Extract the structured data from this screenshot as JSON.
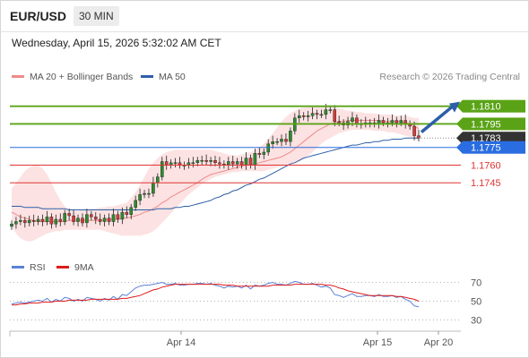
{
  "header": {
    "pair": "EUR/USD",
    "timeframe": "30 MIN",
    "datetime": "Wednesday, April 15, 2026 5:32:02 AM CET"
  },
  "legend": {
    "ma20": "MA 20 + Bollinger Bands",
    "ma50": "MA 50",
    "credit": "Research © 2026 Trading Central",
    "ma20_color": "#ef8a8a",
    "ma50_color": "#2d5fa8"
  },
  "rsi_legend": {
    "rsi": "RSI",
    "ma9": "9MA",
    "rsi_color": "#5a82d6",
    "ma9_color": "#e01b1b"
  },
  "chart_data": [
    {
      "type": "candlestick",
      "ylim": [
        1.1695,
        1.1828
      ],
      "x_ticks": [
        "Apr 14",
        "Apr 15",
        "Apr 20"
      ],
      "levels": [
        {
          "value": 1.181,
          "label": "1.1810",
          "kind": "resistance",
          "color": "#5aa317"
        },
        {
          "value": 1.1795,
          "label": "1.1795",
          "kind": "resistance",
          "color": "#5aa317"
        },
        {
          "value": 1.1783,
          "label": "1.1783",
          "kind": "current",
          "color": "#333333"
        },
        {
          "value": 1.1775,
          "label": "1.1775",
          "kind": "pivot",
          "color": "#2a6de0"
        },
        {
          "value": 1.176,
          "label": "1.1760",
          "kind": "support",
          "color": "#e03434"
        },
        {
          "value": 1.1745,
          "label": "1.1745",
          "kind": "support",
          "color": "#e03434"
        }
      ],
      "close": [
        1.171,
        1.1712,
        1.1713,
        1.1711,
        1.1713,
        1.1712,
        1.1714,
        1.1712,
        1.1716,
        1.171,
        1.1714,
        1.1712,
        1.1719,
        1.1717,
        1.1712,
        1.1715,
        1.1711,
        1.1718,
        1.1716,
        1.1714,
        1.1712,
        1.1715,
        1.1712,
        1.1718,
        1.1714,
        1.172,
        1.1718,
        1.1724,
        1.173,
        1.1735,
        1.1736,
        1.1736,
        1.1745,
        1.175,
        1.1763,
        1.176,
        1.1762,
        1.1762,
        1.176,
        1.176,
        1.1762,
        1.1762,
        1.1764,
        1.1764,
        1.1763,
        1.1764,
        1.1762,
        1.1761,
        1.176,
        1.1763,
        1.1761,
        1.1763,
        1.176,
        1.1766,
        1.176,
        1.177,
        1.1769,
        1.1771,
        1.1778,
        1.178,
        1.178,
        1.1782,
        1.178,
        1.1789,
        1.18,
        1.1802,
        1.1801,
        1.1802,
        1.1804,
        1.1803,
        1.1803,
        1.1807,
        1.1807,
        1.1797,
        1.1796,
        1.1794,
        1.1797,
        1.18,
        1.1795,
        1.1795,
        1.1796,
        1.1796,
        1.1795,
        1.1798,
        1.1796,
        1.1796,
        1.1798,
        1.1796,
        1.1798,
        1.1795,
        1.1793,
        1.1785,
        1.1783
      ],
      "ma20": [
        1.172,
        1.1718,
        1.1716,
        1.1715,
        1.1714,
        1.1713,
        1.1712,
        1.1712,
        1.1712,
        1.1712,
        1.1712,
        1.1712,
        1.1712,
        1.1713,
        1.1713,
        1.1713,
        1.1713,
        1.1713,
        1.1713,
        1.1713,
        1.1713,
        1.1713,
        1.1714,
        1.1714,
        1.1714,
        1.1715,
        1.1715,
        1.1716,
        1.1717,
        1.1718,
        1.172,
        1.1721,
        1.1723,
        1.1725,
        1.1728,
        1.173,
        1.1733,
        1.1735,
        1.1737,
        1.1739,
        1.1741,
        1.1743,
        1.1745,
        1.1748,
        1.175,
        1.1752,
        1.1753,
        1.1754,
        1.1755,
        1.1756,
        1.1757,
        1.1758,
        1.1759,
        1.176,
        1.176,
        1.1761,
        1.1762,
        1.1763,
        1.1764,
        1.1765,
        1.1766,
        1.1767,
        1.1769,
        1.1771,
        1.1774,
        1.1777,
        1.178,
        1.1783,
        1.1786,
        1.1789,
        1.1791,
        1.1793,
        1.1795,
        1.1796,
        1.1797,
        1.1797,
        1.1798,
        1.1798,
        1.1798,
        1.1798,
        1.1798,
        1.1798,
        1.1798,
        1.1798,
        1.1797,
        1.1797,
        1.1797,
        1.1797,
        1.1797,
        1.1796,
        1.1795,
        1.1793,
        1.1791
      ],
      "ma50": [
        1.1725,
        1.1725,
        1.1725,
        1.1724,
        1.1724,
        1.1724,
        1.1724,
        1.1723,
        1.1723,
        1.1723,
        1.1723,
        1.1723,
        1.1723,
        1.1722,
        1.1722,
        1.1722,
        1.1722,
        1.1722,
        1.1722,
        1.1722,
        1.1722,
        1.1722,
        1.1722,
        1.1722,
        1.1722,
        1.1722,
        1.1722,
        1.1722,
        1.1722,
        1.1722,
        1.1722,
        1.1722,
        1.1722,
        1.1723,
        1.1723,
        1.1723,
        1.1723,
        1.1724,
        1.1724,
        1.1725,
        1.1725,
        1.1726,
        1.1727,
        1.1728,
        1.1729,
        1.173,
        1.1732,
        1.1733,
        1.1735,
        1.1736,
        1.1738,
        1.1739,
        1.1741,
        1.1743,
        1.1744,
        1.1746,
        1.1748,
        1.1749,
        1.1751,
        1.1753,
        1.1755,
        1.1757,
        1.1759,
        1.1761,
        1.1762,
        1.1764,
        1.1766,
        1.1767,
        1.1768,
        1.1769,
        1.177,
        1.1771,
        1.1772,
        1.1773,
        1.1774,
        1.1775,
        1.1776,
        1.1777,
        1.1777,
        1.1778,
        1.1779,
        1.1779,
        1.178,
        1.178,
        1.1781,
        1.1781,
        1.1782,
        1.1782,
        1.1782,
        1.1783,
        1.1783,
        1.1783,
        1.1783
      ],
      "bb_upper": [
        1.174,
        1.1745,
        1.175,
        1.1755,
        1.1758,
        1.176,
        1.176,
        1.1757,
        1.1752,
        1.1745,
        1.1737,
        1.173,
        1.1725,
        1.1722,
        1.1721,
        1.1721,
        1.1722,
        1.1722,
        1.1723,
        1.1723,
        1.1724,
        1.1724,
        1.1725,
        1.1725,
        1.1726,
        1.1727,
        1.1728,
        1.1732,
        1.1737,
        1.1743,
        1.175,
        1.1757,
        1.1762,
        1.1766,
        1.1769,
        1.1771,
        1.1772,
        1.1773,
        1.1773,
        1.1773,
        1.1773,
        1.1773,
        1.1773,
        1.1773,
        1.1773,
        1.1773,
        1.1772,
        1.1771,
        1.177,
        1.1769,
        1.1768,
        1.1768,
        1.1769,
        1.177,
        1.1771,
        1.1773,
        1.1775,
        1.1778,
        1.1782,
        1.1787,
        1.1792,
        1.1797,
        1.1801,
        1.1804,
        1.1806,
        1.1808,
        1.1809,
        1.1809,
        1.181,
        1.181,
        1.181,
        1.181,
        1.1809,
        1.1809,
        1.1808,
        1.1807,
        1.1806,
        1.1806,
        1.1805,
        1.1805,
        1.1804,
        1.1804,
        1.1804,
        1.1803,
        1.1803,
        1.1803,
        1.1803,
        1.1802,
        1.1802,
        1.1802,
        1.1801,
        1.18,
        1.18
      ],
      "bb_lower": [
        1.1708,
        1.1702,
        1.1698,
        1.1696,
        1.1695,
        1.1696,
        1.1698,
        1.17,
        1.1702,
        1.1703,
        1.1704,
        1.1704,
        1.1705,
        1.1705,
        1.1705,
        1.1705,
        1.1705,
        1.1705,
        1.1705,
        1.1705,
        1.1705,
        1.1704,
        1.1703,
        1.1702,
        1.1701,
        1.17,
        1.17,
        1.17,
        1.17,
        1.17,
        1.1701,
        1.1702,
        1.1704,
        1.1707,
        1.1711,
        1.1715,
        1.1719,
        1.1723,
        1.1727,
        1.1731,
        1.1735,
        1.1738,
        1.1741,
        1.1744,
        1.1746,
        1.1748,
        1.175,
        1.1751,
        1.1752,
        1.1753,
        1.1754,
        1.1754,
        1.1755,
        1.1755,
        1.1755,
        1.1755,
        1.1755,
        1.1755,
        1.1756,
        1.1757,
        1.1758,
        1.1759,
        1.176,
        1.1761,
        1.1762,
        1.1763,
        1.1765,
        1.1768,
        1.1771,
        1.1775,
        1.1778,
        1.1781,
        1.1783,
        1.1785,
        1.1787,
        1.1788,
        1.1789,
        1.179,
        1.179,
        1.179,
        1.179,
        1.179,
        1.1789,
        1.1789,
        1.1789,
        1.1788,
        1.1788,
        1.1787,
        1.1786,
        1.1785,
        1.1784,
        1.1782,
        1.1781
      ],
      "projection": {
        "from": 1.1788,
        "to": 1.181
      }
    },
    {
      "type": "line",
      "title": "RSI",
      "ylim": [
        20,
        80
      ],
      "y_ticks": [
        70,
        50,
        30
      ],
      "series": [
        {
          "name": "RSI",
          "values": [
            47,
            48,
            49,
            48,
            49,
            50,
            51,
            50,
            53,
            49,
            52,
            50,
            54,
            53,
            50,
            52,
            50,
            54,
            53,
            52,
            50,
            53,
            51,
            55,
            52,
            57,
            56,
            60,
            64,
            66,
            67,
            67,
            68,
            69,
            70,
            68,
            68,
            69,
            67,
            67,
            68,
            68,
            69,
            69,
            68,
            69,
            67,
            66,
            64,
            66,
            65,
            66,
            64,
            67,
            63,
            67,
            66,
            67,
            69,
            70,
            68,
            68,
            67,
            69,
            71,
            70,
            68,
            68,
            69,
            67,
            65,
            66,
            64,
            57,
            56,
            54,
            56,
            58,
            55,
            55,
            56,
            56,
            55,
            57,
            55,
            55,
            56,
            54,
            55,
            52,
            50,
            45,
            44
          ]
        },
        {
          "name": "9MA",
          "values": [
            46,
            46,
            47,
            47,
            48,
            48,
            48,
            49,
            49,
            49,
            50,
            50,
            50,
            51,
            51,
            51,
            51,
            51,
            52,
            52,
            52,
            52,
            52,
            52,
            52,
            53,
            53,
            54,
            55,
            56,
            58,
            60,
            62,
            63,
            65,
            66,
            67,
            68,
            68,
            68,
            68,
            68,
            68,
            68,
            68,
            68,
            68,
            68,
            67,
            67,
            67,
            66,
            66,
            66,
            66,
            66,
            66,
            66,
            66,
            67,
            67,
            67,
            67,
            67,
            68,
            68,
            68,
            68,
            68,
            68,
            68,
            67,
            67,
            66,
            64,
            63,
            61,
            60,
            59,
            58,
            57,
            56,
            56,
            56,
            56,
            56,
            56,
            55,
            55,
            54,
            53,
            52,
            50
          ]
        }
      ]
    }
  ]
}
